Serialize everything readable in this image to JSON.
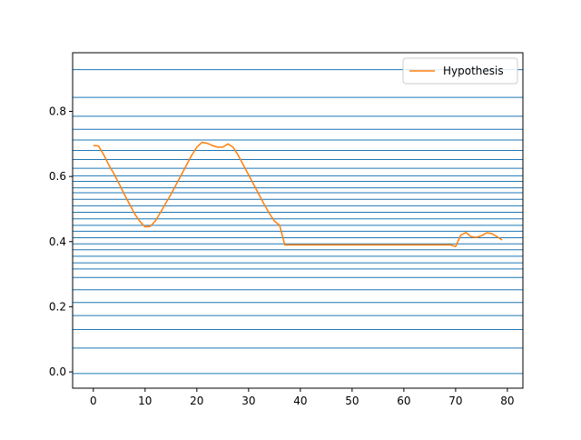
{
  "chart_data": {
    "type": "line",
    "title": "",
    "xlabel": "",
    "ylabel": "",
    "xlim": [
      -4,
      83
    ],
    "ylim": [
      -0.05,
      0.98
    ],
    "x_ticks": [
      0,
      10,
      20,
      30,
      40,
      50,
      60,
      70,
      80
    ],
    "y_ticks": [
      0.0,
      0.2,
      0.4,
      0.6,
      0.8
    ],
    "x_tick_labels": [
      "0",
      "10",
      "20",
      "30",
      "40",
      "50",
      "60",
      "70",
      "80"
    ],
    "y_tick_labels": [
      "0.0",
      "0.2",
      "0.4",
      "0.6",
      "0.8"
    ],
    "grid": false,
    "legend": {
      "position": "top-right",
      "entries": [
        "Hypothesis"
      ]
    },
    "horizontal_lines": {
      "color": "#1f77b4",
      "values": [
        -0.005,
        0.073,
        0.13,
        0.173,
        0.213,
        0.252,
        0.29,
        0.316,
        0.335,
        0.355,
        0.375,
        0.393,
        0.412,
        0.432,
        0.45,
        0.47,
        0.49,
        0.51,
        0.53,
        0.55,
        0.565,
        0.585,
        0.602,
        0.625,
        0.652,
        0.68,
        0.712,
        0.745,
        0.785,
        0.843,
        0.928
      ]
    },
    "series": [
      {
        "name": "Hypothesis",
        "color": "#ff7f0e",
        "x": [
          0,
          1,
          2,
          3,
          4,
          5,
          6,
          7,
          8,
          9,
          10,
          11,
          12,
          13,
          14,
          15,
          16,
          17,
          18,
          19,
          20,
          21,
          22,
          23,
          24,
          25,
          26,
          27,
          28,
          29,
          30,
          31,
          32,
          33,
          34,
          35,
          36,
          37,
          38,
          39,
          40,
          45,
          50,
          55,
          60,
          65,
          69,
          70,
          71,
          72,
          73,
          74,
          75,
          76,
          77,
          78,
          79
        ],
        "y": [
          0.695,
          0.694,
          0.667,
          0.635,
          0.608,
          0.577,
          0.545,
          0.515,
          0.485,
          0.462,
          0.445,
          0.447,
          0.464,
          0.49,
          0.518,
          0.545,
          0.575,
          0.605,
          0.635,
          0.665,
          0.69,
          0.705,
          0.702,
          0.695,
          0.69,
          0.69,
          0.7,
          0.69,
          0.665,
          0.635,
          0.605,
          0.575,
          0.545,
          0.515,
          0.487,
          0.463,
          0.45,
          0.39,
          0.39,
          0.39,
          0.39,
          0.39,
          0.39,
          0.39,
          0.39,
          0.39,
          0.39,
          0.385,
          0.42,
          0.428,
          0.415,
          0.413,
          0.418,
          0.427,
          0.425,
          0.415,
          0.405
        ]
      }
    ]
  }
}
